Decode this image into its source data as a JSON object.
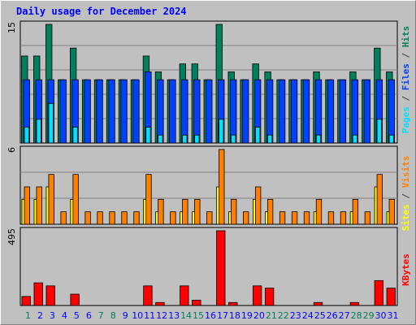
{
  "title": "Daily usage for December 2024",
  "colors": {
    "hits": "#00805c",
    "files": "#0040ff",
    "pages": "#00e0ff",
    "visits": "#ff8000",
    "sites": "#ffff00",
    "kbytes": "#ff0000",
    "weekend": "#00805c",
    "weekday": "#0000ff",
    "background": "#c0c0c0"
  },
  "legend": {
    "top": [
      {
        "text": "Pages",
        "color": "#00e0ff"
      },
      {
        "text": " / ",
        "color": "#404040"
      },
      {
        "text": "Files",
        "color": "#0040ff"
      },
      {
        "text": " / ",
        "color": "#404040"
      },
      {
        "text": "Hits",
        "color": "#00805c"
      }
    ],
    "middle": [
      {
        "text": "Sites",
        "color": "#ffff00"
      },
      {
        "text": " / ",
        "color": "#404040"
      },
      {
        "text": "Visits",
        "color": "#ff8000"
      }
    ],
    "bottom": [
      {
        "text": "KBytes",
        "color": "#ff0000"
      }
    ]
  },
  "chart_data": [
    {
      "type": "bar",
      "panel": "hits-files-pages",
      "categories": [
        "1",
        "2",
        "3",
        "4",
        "5",
        "6",
        "7",
        "8",
        "9",
        "10",
        "11",
        "12",
        "13",
        "14",
        "15",
        "16",
        "17",
        "18",
        "19",
        "20",
        "21",
        "22",
        "23",
        "24",
        "25",
        "26",
        "27",
        "28",
        "29",
        "30",
        "31"
      ],
      "weekend_days": [
        1,
        7,
        8,
        14,
        15,
        21,
        22,
        28,
        29
      ],
      "ymax_label": "15",
      "ylim": [
        0,
        15
      ],
      "series": [
        {
          "name": "Hits",
          "values": [
            11,
            11,
            15,
            8,
            12,
            8,
            8,
            8,
            8,
            8,
            11,
            9,
            8,
            10,
            10,
            8,
            15,
            9,
            8,
            10,
            9,
            8,
            8,
            8,
            9,
            8,
            8,
            9,
            8,
            12,
            9
          ]
        },
        {
          "name": "Files",
          "values": [
            8,
            8,
            8,
            8,
            8,
            8,
            8,
            8,
            8,
            8,
            9,
            8,
            8,
            8,
            8,
            8,
            8,
            8,
            8,
            8,
            8,
            8,
            8,
            8,
            8,
            8,
            8,
            8,
            8,
            8,
            8
          ]
        },
        {
          "name": "Pages",
          "values": [
            2,
            3,
            5,
            0,
            2,
            0,
            0,
            0,
            0,
            0,
            2,
            1,
            0,
            1,
            1,
            0,
            3,
            1,
            0,
            2,
            1,
            0,
            0,
            0,
            1,
            0,
            0,
            1,
            0,
            3,
            1
          ]
        }
      ]
    },
    {
      "type": "bar",
      "panel": "visits-sites",
      "categories": [
        "1",
        "2",
        "3",
        "4",
        "5",
        "6",
        "7",
        "8",
        "9",
        "10",
        "11",
        "12",
        "13",
        "14",
        "15",
        "16",
        "17",
        "18",
        "19",
        "20",
        "21",
        "22",
        "23",
        "24",
        "25",
        "26",
        "27",
        "28",
        "29",
        "30",
        "31"
      ],
      "ymax_label": "6",
      "ylim": [
        0,
        6
      ],
      "series": [
        {
          "name": "Sites",
          "values": [
            2,
            2,
            3,
            0,
            2,
            0,
            0,
            0,
            0,
            0,
            2,
            1,
            0,
            1,
            1,
            0,
            3,
            1,
            0,
            2,
            1,
            0,
            0,
            0,
            1,
            0,
            0,
            1,
            0,
            3,
            1
          ]
        },
        {
          "name": "Visits",
          "values": [
            3,
            3,
            4,
            1,
            4,
            1,
            1,
            1,
            1,
            1,
            4,
            2,
            1,
            2,
            2,
            1,
            6,
            2,
            1,
            3,
            2,
            1,
            1,
            1,
            2,
            1,
            1,
            2,
            1,
            4,
            2
          ]
        }
      ]
    },
    {
      "type": "bar",
      "panel": "kbytes",
      "categories": [
        "1",
        "2",
        "3",
        "4",
        "5",
        "6",
        "7",
        "8",
        "9",
        "10",
        "11",
        "12",
        "13",
        "14",
        "15",
        "16",
        "17",
        "18",
        "19",
        "20",
        "21",
        "22",
        "23",
        "24",
        "25",
        "26",
        "27",
        "28",
        "29",
        "30",
        "31"
      ],
      "ymax_label": "495",
      "ylim": [
        0,
        495
      ],
      "series": [
        {
          "name": "KBytes",
          "values": [
            60,
            150,
            130,
            0,
            75,
            0,
            0,
            0,
            0,
            0,
            130,
            20,
            0,
            130,
            35,
            0,
            495,
            20,
            0,
            130,
            115,
            0,
            0,
            0,
            20,
            0,
            0,
            20,
            0,
            165,
            115
          ]
        }
      ]
    }
  ]
}
